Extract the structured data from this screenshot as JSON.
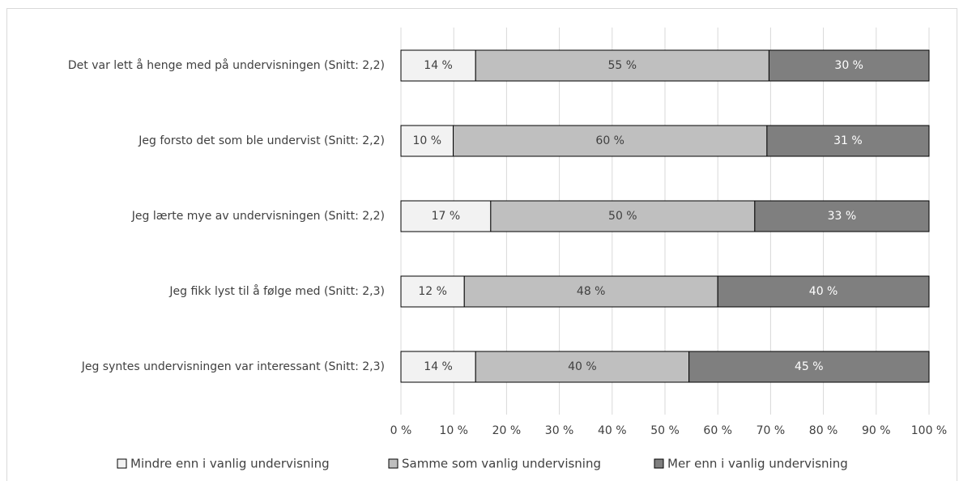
{
  "chart_data": {
    "type": "bar",
    "orientation": "horizontal",
    "stacked": true,
    "percent_stacked": true,
    "categories": [
      "Det var lett å henge med på undervisningen (Snitt: 2,2)",
      "Jeg forsto det som ble undervist (Snitt: 2,2)",
      "Jeg lærte mye av undervisningen (Snitt: 2,2)",
      "Jeg fikk lyst til å følge med (Snitt: 2,3)",
      "Jeg syntes undervisningen var interessant (Snitt: 2,3)"
    ],
    "series": [
      {
        "name": "Mindre enn i vanlig undervisning",
        "color": "#f2f2f2",
        "values": [
          14,
          10,
          17,
          12,
          14
        ],
        "labels": [
          "14 %",
          "10 %",
          "17 %",
          "12 %",
          "14 %"
        ]
      },
      {
        "name": "Samme som vanlig undervisning",
        "color": "#bfbfbf",
        "values": [
          55,
          60,
          50,
          48,
          40
        ],
        "labels": [
          "55 %",
          "60 %",
          "50 %",
          "48 %",
          "40 %"
        ]
      },
      {
        "name": "Mer enn i vanlig undervisning",
        "color": "#7f7f7f",
        "values": [
          30,
          31,
          33,
          40,
          45
        ],
        "labels": [
          "30 %",
          "31 %",
          "33 %",
          "40 %",
          "45 %"
        ]
      }
    ],
    "x_ticks": [
      "0 %",
      "10 %",
      "20 %",
      "30 %",
      "40 %",
      "50 %",
      "60 %",
      "70 %",
      "80 %",
      "90 %",
      "100 %"
    ],
    "xlim": [
      0,
      100
    ],
    "grid": "vertical",
    "legend_position": "bottom",
    "colors": {
      "gridline": "#d9d9d9",
      "bar_outline": "#000000",
      "text": "#404040",
      "label_on_dark": "#ffffff"
    }
  }
}
